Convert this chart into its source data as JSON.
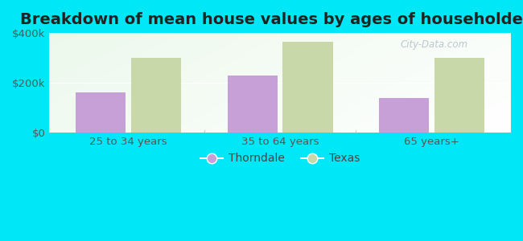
{
  "title": "Breakdown of mean house values by ages of householders",
  "categories": [
    "25 to 34 years",
    "35 to 64 years",
    "65 years+"
  ],
  "thorndale_values": [
    160000,
    230000,
    140000
  ],
  "texas_values": [
    300000,
    365000,
    300000
  ],
  "thorndale_color": "#c8a0d8",
  "texas_color": "#c8d8a8",
  "background_outer": "#00e8f8",
  "background_plot_tl": "#c8e8c0",
  "background_plot_br": "#f0f8f0",
  "ylim": [
    0,
    400000
  ],
  "yticks": [
    0,
    200000,
    400000
  ],
  "ytick_labels": [
    "$0",
    "$200k",
    "$400k"
  ],
  "legend_labels": [
    "Thorndale",
    "Texas"
  ],
  "bar_width": 0.38,
  "title_fontsize": 14,
  "tick_fontsize": 9.5,
  "legend_fontsize": 10,
  "divider_color": "#aaddcc",
  "watermark": "City-Data.com"
}
